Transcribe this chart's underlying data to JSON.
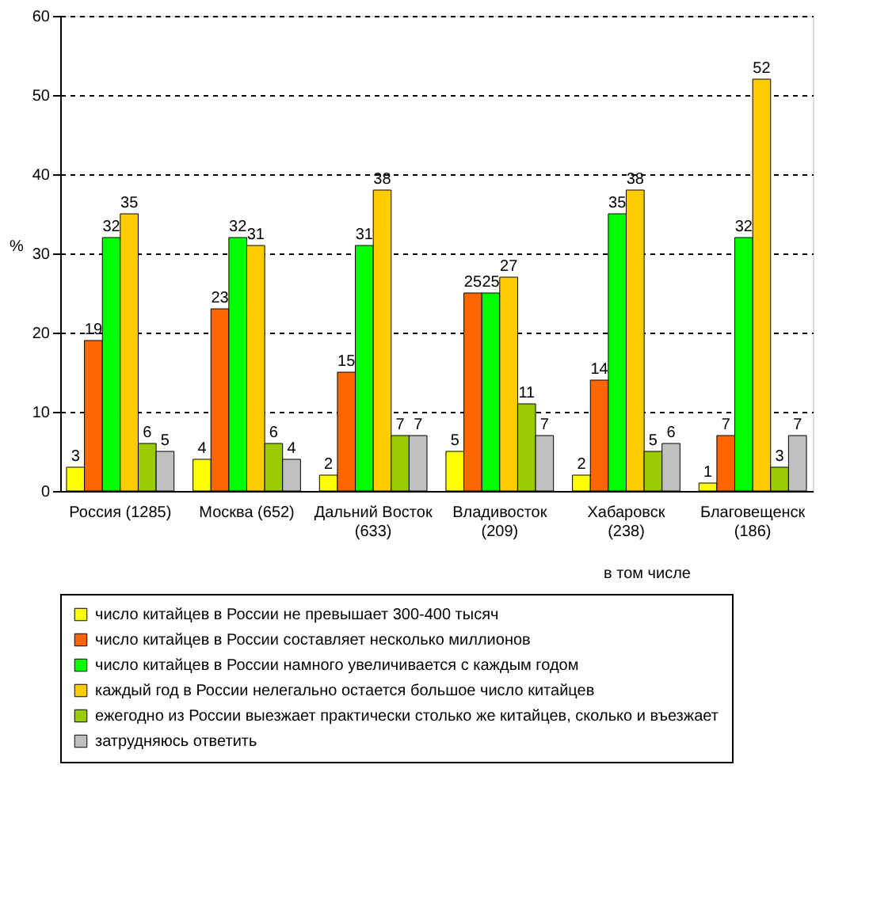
{
  "chart_data": {
    "type": "bar",
    "ylabel": "%",
    "categories": [
      "Россия (1285)",
      "Москва (652)",
      "Дальний Восток (633)",
      "Владивосток (209)",
      "Хабаровск (238)",
      "Благовещенск (186)"
    ],
    "series": [
      {
        "name": "число китайцев в России не превышает 300-400 тысяч",
        "color": "#ffff00",
        "values": [
          3,
          4,
          2,
          5,
          2,
          1
        ]
      },
      {
        "name": "число китайцев в России составляет несколько миллионов",
        "color": "#ff6600",
        "values": [
          19,
          23,
          15,
          25,
          14,
          7
        ]
      },
      {
        "name": "число китайцев в России намного увеличивается с каждым годом",
        "color": "#00ff00",
        "values": [
          32,
          32,
          31,
          25,
          35,
          32
        ]
      },
      {
        "name": "каждый год в России нелегально остается большое число китайцев",
        "color": "#ffcc00",
        "values": [
          35,
          31,
          38,
          27,
          38,
          52
        ]
      },
      {
        "name": "ежегодно из России выезжает практически столько же китайцев, сколько и въезжает",
        "color": "#99cc00",
        "values": [
          6,
          6,
          7,
          11,
          5,
          3
        ]
      },
      {
        "name": "затрудняюсь ответить",
        "color": "#c0c0c0",
        "values": [
          5,
          4,
          7,
          7,
          6,
          7
        ]
      }
    ],
    "ylim": [
      0,
      60
    ],
    "yticks": [
      0,
      10,
      20,
      30,
      40,
      50,
      60
    ],
    "grid": "y",
    "legend": "bottom",
    "data_labels": true,
    "annotations": [
      "в том числе"
    ]
  }
}
